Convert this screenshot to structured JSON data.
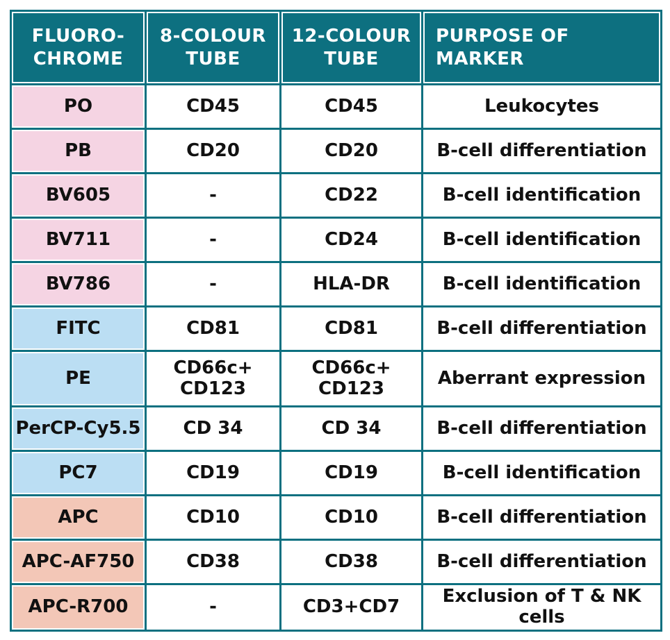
{
  "colors": {
    "header_teal": "#0d7080",
    "grid_teal": "#0d7080",
    "group_pink": "#f5d4e3",
    "group_blue": "#bbdef3",
    "group_salmon": "#f3c7b7",
    "header_text": "#ffffff",
    "body_text": "#111111"
  },
  "table": {
    "columns": [
      {
        "label": "FLUORO-\nCHROME"
      },
      {
        "label": "8-COLOUR\nTUBE"
      },
      {
        "label": "12-COLOUR\nTUBE"
      },
      {
        "label": "PURPOSE OF\nMARKER"
      }
    ],
    "rows": [
      {
        "fluorochrome": "PO",
        "group": "pink",
        "tube8": "CD45",
        "tube12": "CD45",
        "purpose": "Leukocytes"
      },
      {
        "fluorochrome": "PB",
        "group": "pink",
        "tube8": "CD20",
        "tube12": "CD20",
        "purpose": "B-cell differentiation"
      },
      {
        "fluorochrome": "BV605",
        "group": "pink",
        "tube8": "-",
        "tube12": "CD22",
        "purpose": "B-cell identification"
      },
      {
        "fluorochrome": "BV711",
        "group": "pink",
        "tube8": "-",
        "tube12": "CD24",
        "purpose": "B-cell identification"
      },
      {
        "fluorochrome": "BV786",
        "group": "pink",
        "tube8": "-",
        "tube12": "HLA-DR",
        "purpose": "B-cell identification"
      },
      {
        "fluorochrome": "FITC",
        "group": "blue",
        "tube8": "CD81",
        "tube12": "CD81",
        "purpose": "B-cell differentiation"
      },
      {
        "fluorochrome": "PE",
        "group": "blue",
        "tube8": "CD66c+\nCD123",
        "tube12": "CD66c+\nCD123",
        "purpose": "Aberrant expression"
      },
      {
        "fluorochrome": "PerCP-Cy5.5",
        "group": "blue",
        "tube8": "CD 34",
        "tube12": "CD 34",
        "purpose": "B-cell differentiation"
      },
      {
        "fluorochrome": "PC7",
        "group": "blue",
        "tube8": "CD19",
        "tube12": "CD19",
        "purpose": "B-cell identification"
      },
      {
        "fluorochrome": "APC",
        "group": "salmon",
        "tube8": "CD10",
        "tube12": "CD10",
        "purpose": "B-cell differentiation"
      },
      {
        "fluorochrome": "APC-AF750",
        "group": "salmon",
        "tube8": "CD38",
        "tube12": "CD38",
        "purpose": "B-cell differentiation"
      },
      {
        "fluorochrome": "APC-R700",
        "group": "salmon",
        "tube8": "-",
        "tube12": "CD3+CD7",
        "purpose": "Exclusion of T & NK cells"
      }
    ]
  }
}
